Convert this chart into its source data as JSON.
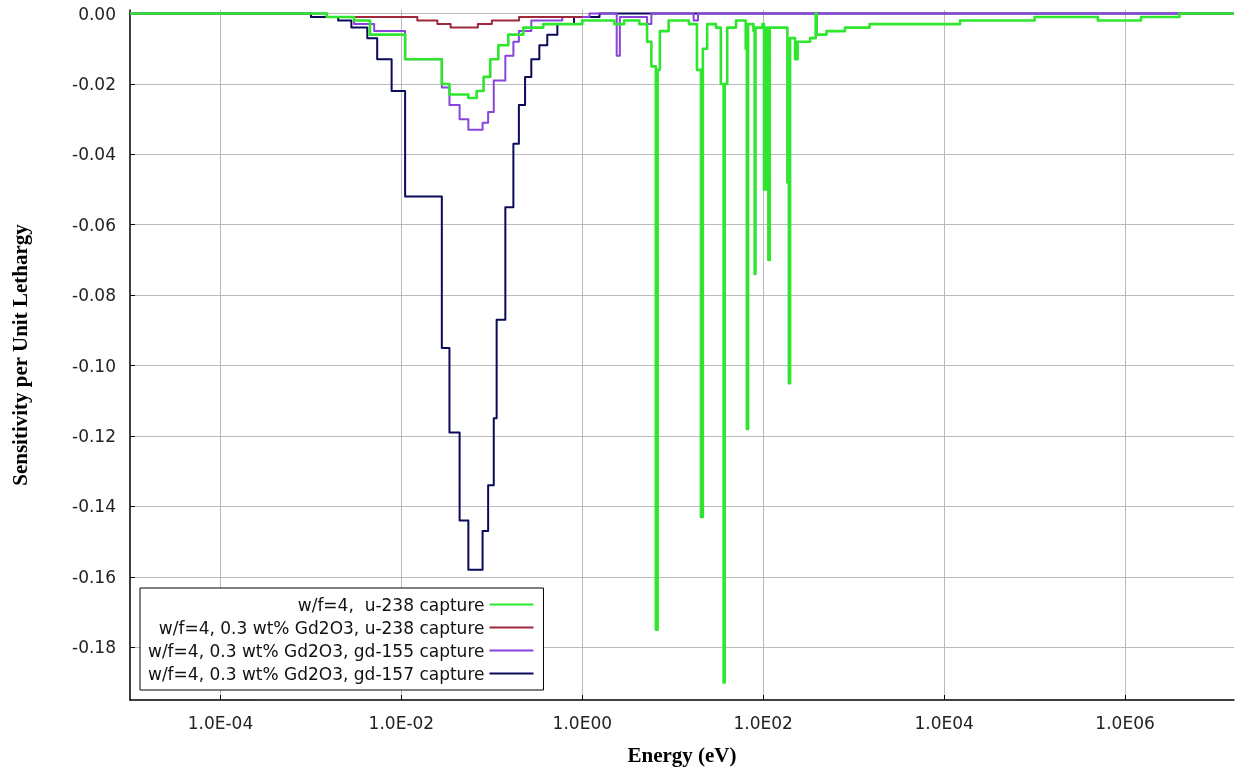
{
  "chart_data": {
    "type": "step",
    "xlabel": "Energy (eV)",
    "ylabel": "Sensitivity per Unit Lethargy",
    "log": "x",
    "grid": true,
    "legend": "bottom left",
    "marker": "none",
    "line_style": "solid",
    "xlim": [
      1e-05,
      16000000.0
    ],
    "xticks": [
      {
        "value": 0.0001,
        "label": "1.0E-04"
      },
      {
        "value": 0.01,
        "label": "1.0E-02"
      },
      {
        "value": 1,
        "label": "1.0E00"
      },
      {
        "value": 100,
        "label": "1.0E02"
      },
      {
        "value": 10000.0,
        "label": "1.0E04"
      },
      {
        "value": 1000000.0,
        "label": "1.0E06"
      }
    ],
    "ylim": [
      -0.195,
      0.001
    ],
    "yticks": [
      {
        "value": 0,
        "label": "0.00"
      },
      {
        "value": -0.02,
        "label": "-0.02"
      },
      {
        "value": -0.04,
        "label": "-0.04"
      },
      {
        "value": -0.06,
        "label": "-0.06"
      },
      {
        "value": -0.08,
        "label": "-0.08"
      },
      {
        "value": -0.1,
        "label": "-0.10"
      },
      {
        "value": -0.12,
        "label": "-0.12"
      },
      {
        "value": -0.14,
        "label": "-0.14"
      },
      {
        "value": -0.16,
        "label": "-0.16"
      },
      {
        "value": -0.18,
        "label": "-0.18"
      }
    ],
    "series": [
      {
        "name": "w/f=4,  u-238 capture",
        "color": "#2ee62e",
        "x": [
          1e-05,
          0.0015,
          0.003,
          0.0045,
          0.011,
          0.028,
          0.034,
          0.055,
          0.068,
          0.081,
          0.096,
          0.118,
          0.152,
          0.223,
          0.37,
          1.0,
          2.26,
          2.9,
          4.27,
          5.2,
          5.8,
          6.5,
          6.8,
          7.2,
          9,
          15.1,
          18.5,
          20.5,
          21.5,
          24,
          30,
          34,
          36.5,
          37.5,
          40,
          50,
          64,
          66,
          68,
          78,
          80.5,
          82,
          98,
          102,
          108,
          114,
          118,
          185,
          192,
          198,
          225,
          240,
          330,
          380,
          390,
          500,
          800,
          1500,
          15000,
          100000,
          500000,
          1500000,
          4000000,
          16000000
        ],
        "values": [
          0,
          -0.001,
          -0.002,
          -0.006,
          -0.013,
          -0.02,
          -0.023,
          -0.024,
          -0.022,
          -0.018,
          -0.013,
          -0.009,
          -0.006,
          -0.004,
          -0.003,
          -0.002,
          -0.003,
          -0.002,
          -0.003,
          -0.008,
          -0.015,
          -0.175,
          -0.016,
          -0.005,
          -0.002,
          -0.003,
          -0.016,
          -0.143,
          -0.01,
          -0.003,
          -0.004,
          -0.02,
          -0.19,
          -0.02,
          -0.004,
          -0.002,
          -0.01,
          -0.118,
          -0.003,
          -0.005,
          -0.074,
          -0.004,
          -0.003,
          -0.05,
          -0.004,
          -0.07,
          -0.004,
          -0.048,
          -0.105,
          -0.007,
          -0.013,
          -0.008,
          -0.007,
          0,
          -0.006,
          -0.005,
          -0.004,
          -0.003,
          -0.002,
          -0.001,
          -0.002,
          -0.001,
          0,
          0
        ]
      },
      {
        "name": "w/f=4, 0.3 wt% Gd2O3, u-238 capture",
        "color": "#a0283c",
        "x": [
          0.003,
          0.015,
          0.025,
          0.035,
          0.07,
          0.1,
          0.2,
          1.0
        ],
        "values": [
          -0.001,
          -0.002,
          -0.003,
          -0.004,
          -0.003,
          -0.002,
          -0.001,
          -0.001
        ]
      },
      {
        "name": "w/f=4, 0.3 wt% Gd2O3, gd-155 capture",
        "color": "#8844dd",
        "x": [
          1e-05,
          0.0015,
          0.003,
          0.005,
          0.011,
          0.028,
          0.034,
          0.044,
          0.055,
          0.079,
          0.091,
          0.105,
          0.141,
          0.173,
          0.199,
          0.273,
          0.6,
          1.2,
          2.4,
          2.6,
          5.2,
          5.8,
          17,
          19,
          16000000
        ],
        "values": [
          0,
          -0.001,
          -0.003,
          -0.005,
          -0.013,
          -0.021,
          -0.026,
          -0.03,
          -0.033,
          -0.031,
          -0.028,
          -0.019,
          -0.012,
          -0.008,
          -0.005,
          -0.002,
          -0.001,
          0,
          -0.012,
          -0.001,
          -0.003,
          0,
          -0.002,
          0,
          0
        ]
      },
      {
        "name": "w/f=4, 0.3 wt% Gd2O3, gd-157 capture",
        "color": "#0a0a5a",
        "x": [
          1e-05,
          0.001,
          0.002,
          0.0028,
          0.0042,
          0.0054,
          0.0078,
          0.011,
          0.028,
          0.034,
          0.044,
          0.055,
          0.079,
          0.091,
          0.105,
          0.113,
          0.141,
          0.173,
          0.199,
          0.233,
          0.273,
          0.335,
          0.41,
          0.53,
          0.81,
          1.55,
          16000000
        ],
        "values": [
          0,
          -0.001,
          -0.002,
          -0.004,
          -0.007,
          -0.013,
          -0.022,
          -0.052,
          -0.095,
          -0.119,
          -0.144,
          -0.158,
          -0.147,
          -0.134,
          -0.115,
          -0.087,
          -0.055,
          -0.037,
          -0.026,
          -0.018,
          -0.013,
          -0.009,
          -0.006,
          -0.003,
          -0.001,
          0,
          0
        ]
      }
    ]
  }
}
